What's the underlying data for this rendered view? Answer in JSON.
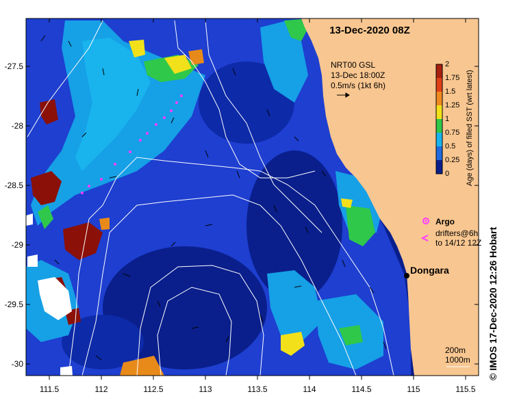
{
  "map": {
    "title": "13-Dec-2020 08Z",
    "x_ticks": [
      "111.5",
      "112",
      "112.5",
      "113",
      "113.5",
      "114",
      "114.5",
      "115",
      "115.5"
    ],
    "y_ticks": [
      "-27.5",
      "-28",
      "-28.5",
      "-29",
      "-29.5",
      "-30"
    ],
    "lon_range": [
      111.3,
      115.6
    ],
    "lat_range": [
      -27.1,
      -30.1
    ],
    "place_name": "Dongara",
    "current_ref": {
      "line1": "NRT00 GSL",
      "line2": "13-Dec 18:00Z",
      "line3": "0.5m/s (1kt 6h)"
    },
    "legend": {
      "argo_label": "Argo",
      "drifters_line1": "drifters@6h",
      "drifters_line2": "to 14/12 12Z"
    },
    "contours": {
      "label_200": "200m",
      "label_1000": "1000m"
    },
    "colors": {
      "land": "#f8c690",
      "ocean_base": "#0a1f8c",
      "ocean_mid": "#1e3fd0",
      "ocean_light": "#16a0e6",
      "green": "#2fc84a",
      "yellow": "#f2e11a",
      "orange": "#e88a1a",
      "darkred": "#8a1008",
      "argo_drifter": "#ff3cff"
    },
    "colorbar": {
      "ticks": [
        "2",
        "1.75",
        "1.5",
        "1.25",
        "1",
        "0.75",
        "0.5",
        "0.25",
        "0"
      ],
      "label": "Age (days) of filled SST (wrt latest)"
    }
  },
  "credit": "© IMOS 17-Dec-2020 12:26 Hobart"
}
